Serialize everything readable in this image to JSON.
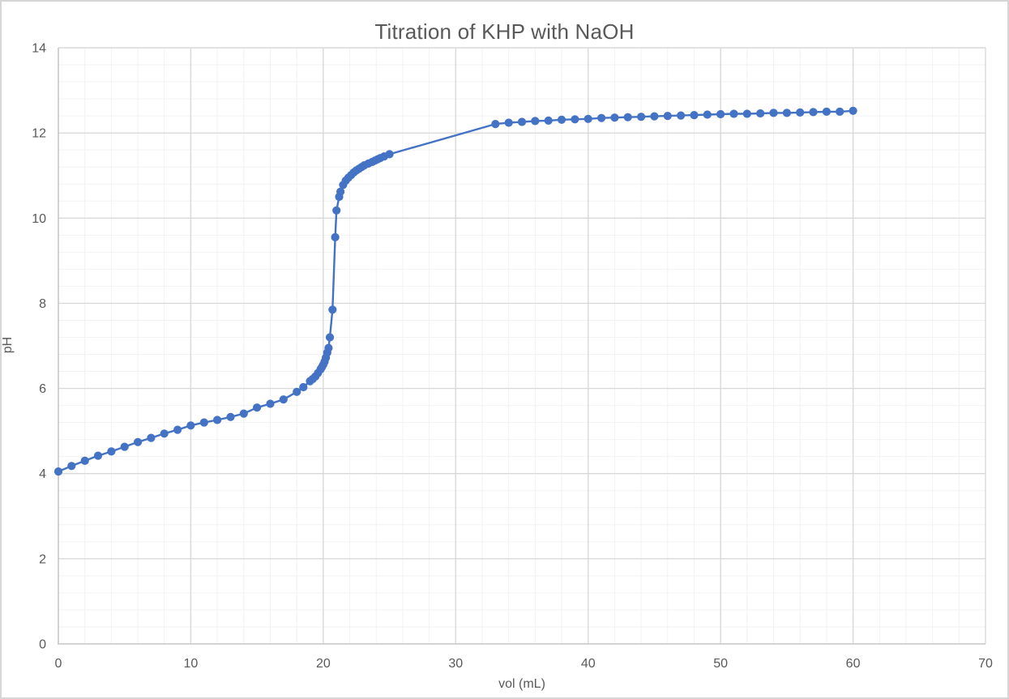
{
  "chart_data": {
    "type": "line",
    "title": "Titration of KHP with NaOH",
    "xlabel": "vol (mL)",
    "ylabel": "pH",
    "xlim": [
      0,
      70
    ],
    "ylim": [
      0,
      14
    ],
    "x_ticks": [
      0,
      10,
      20,
      30,
      40,
      50,
      60,
      70
    ],
    "y_ticks": [
      0,
      2,
      4,
      6,
      8,
      10,
      12,
      14
    ],
    "x_minor_step": 2,
    "y_minor_step": 0.4,
    "grid": "major-and-minor",
    "legend_position": "none",
    "colors": {
      "series": "#4472C4",
      "major_grid": "#d9d9d9",
      "minor_grid": "#f2f2f2",
      "axis_line": "#c6c6c6",
      "text": "#595959",
      "frame_border": "#d6d6d6",
      "background": "#ffffff"
    },
    "series": [
      {
        "name": "pH",
        "marker": "circle",
        "points": [
          [
            0,
            4.05
          ],
          [
            1,
            4.18
          ],
          [
            2,
            4.3
          ],
          [
            3,
            4.42
          ],
          [
            4,
            4.52
          ],
          [
            5,
            4.63
          ],
          [
            6,
            4.74
          ],
          [
            7,
            4.84
          ],
          [
            8,
            4.94
          ],
          [
            9,
            5.03
          ],
          [
            10,
            5.13
          ],
          [
            11,
            5.2
          ],
          [
            12,
            5.26
          ],
          [
            13,
            5.33
          ],
          [
            14,
            5.41
          ],
          [
            15,
            5.55
          ],
          [
            16,
            5.64
          ],
          [
            17,
            5.74
          ],
          [
            18,
            5.92
          ],
          [
            18.5,
            6.03
          ],
          [
            19,
            6.17
          ],
          [
            19.2,
            6.22
          ],
          [
            19.4,
            6.28
          ],
          [
            19.6,
            6.36
          ],
          [
            19.8,
            6.45
          ],
          [
            19.9,
            6.5
          ],
          [
            20,
            6.56
          ],
          [
            20.1,
            6.63
          ],
          [
            20.2,
            6.72
          ],
          [
            20.3,
            6.84
          ],
          [
            20.4,
            6.95
          ],
          [
            20.5,
            7.2
          ],
          [
            20.7,
            7.85
          ],
          [
            20.9,
            9.55
          ],
          [
            21,
            10.18
          ],
          [
            21.2,
            10.5
          ],
          [
            21.3,
            10.62
          ],
          [
            21.5,
            10.78
          ],
          [
            21.7,
            10.88
          ],
          [
            21.9,
            10.95
          ],
          [
            22.1,
            11.01
          ],
          [
            22.3,
            11.07
          ],
          [
            22.5,
            11.12
          ],
          [
            22.7,
            11.16
          ],
          [
            22.9,
            11.2
          ],
          [
            23.1,
            11.24
          ],
          [
            23.4,
            11.28
          ],
          [
            23.7,
            11.32
          ],
          [
            23.9,
            11.35
          ],
          [
            24.1,
            11.38
          ],
          [
            24.3,
            11.41
          ],
          [
            24.6,
            11.45
          ],
          [
            25,
            11.5
          ],
          [
            33,
            12.21
          ],
          [
            34,
            12.24
          ],
          [
            35,
            12.26
          ],
          [
            36,
            12.28
          ],
          [
            37,
            12.29
          ],
          [
            38,
            12.31
          ],
          [
            39,
            12.32
          ],
          [
            40,
            12.33
          ],
          [
            41,
            12.35
          ],
          [
            42,
            12.36
          ],
          [
            43,
            12.37
          ],
          [
            44,
            12.38
          ],
          [
            45,
            12.39
          ],
          [
            46,
            12.4
          ],
          [
            47,
            12.41
          ],
          [
            48,
            12.42
          ],
          [
            49,
            12.43
          ],
          [
            50,
            12.44
          ],
          [
            51,
            12.45
          ],
          [
            52,
            12.45
          ],
          [
            53,
            12.46
          ],
          [
            54,
            12.47
          ],
          [
            55,
            12.47
          ],
          [
            56,
            12.48
          ],
          [
            57,
            12.49
          ],
          [
            58,
            12.5
          ],
          [
            59,
            12.5
          ],
          [
            60,
            12.52
          ]
        ]
      }
    ]
  }
}
